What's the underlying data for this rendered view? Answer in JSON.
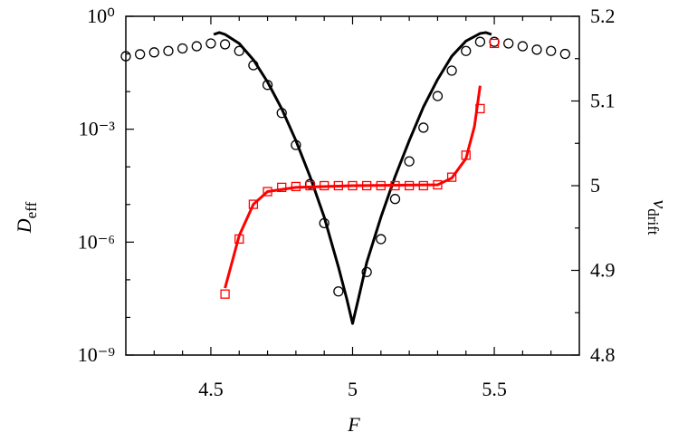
{
  "chart_data": {
    "type": "line",
    "xlabel": "F",
    "ylabel": "D",
    "ylabel_sub": "eff",
    "y2label": "v",
    "y2label_sub": "drift",
    "xlim": [
      4.2,
      5.8
    ],
    "xticks": [
      4.5,
      5,
      5.5
    ],
    "xminorticks": [
      4.3,
      4.4,
      4.6,
      4.7,
      4.8,
      4.9,
      5.1,
      5.2,
      5.3,
      5.4,
      5.6,
      5.7
    ],
    "ylim": [
      1e-09,
      1
    ],
    "yscale": "log",
    "yticks": [
      {
        "value": 1,
        "label": "10⁰"
      },
      {
        "value": 0.001,
        "label": "10⁻³"
      },
      {
        "value": 1e-06,
        "label": "10⁻⁶"
      },
      {
        "value": 1e-09,
        "label": "10⁻⁹"
      }
    ],
    "yminorticks": [
      0.1,
      0.01,
      0.0001,
      1e-05,
      1e-07,
      1e-08
    ],
    "y2lim": [
      4.8,
      5.2
    ],
    "y2ticks": [
      4.8,
      4.9,
      5,
      5.1,
      5.2
    ],
    "y2minorticks": [
      4.85,
      4.95,
      5.05,
      5.15
    ],
    "series": [
      {
        "color": "#000000",
        "marker": "circle",
        "axis": "y",
        "x": [
          4.2,
          4.25,
          4.3,
          4.35,
          4.4,
          4.45,
          4.5,
          4.55,
          4.6,
          4.65,
          4.7,
          4.75,
          4.8,
          4.85,
          4.9,
          4.95,
          5.05,
          5.1,
          5.15,
          5.2,
          5.25,
          5.3,
          5.35,
          5.4,
          5.45,
          5.5,
          5.55,
          5.6,
          5.65,
          5.7,
          5.75
        ],
        "values": [
          0.087,
          0.098,
          0.11,
          0.12,
          0.14,
          0.16,
          0.19,
          0.18,
          0.12,
          0.05,
          0.015,
          0.0027,
          0.00038,
          3.5e-05,
          3.2e-06,
          4.9e-08,
          1.6e-07,
          1.2e-06,
          1.4e-05,
          0.00014,
          0.0011,
          0.0076,
          0.036,
          0.12,
          0.21,
          0.21,
          0.19,
          0.16,
          0.13,
          0.12,
          0.1
        ]
      },
      {
        "color": "#000000",
        "marker": "none",
        "axis": "y",
        "x": [
          4.51,
          4.53,
          4.55,
          4.6,
          4.65,
          4.7,
          4.75,
          4.8,
          4.85,
          4.9,
          4.95,
          4.98,
          5.0,
          5.02,
          5.05,
          5.1,
          5.15,
          5.2,
          5.25,
          5.3,
          5.35,
          5.4,
          5.45,
          5.47,
          5.49
        ],
        "values": [
          0.33,
          0.37,
          0.33,
          0.19,
          0.07,
          0.018,
          0.0035,
          0.0005,
          5.5e-05,
          4.6e-06,
          2.2e-07,
          3e-08,
          6.9e-09,
          3e-08,
          2.9e-07,
          4.6e-06,
          5.5e-05,
          0.0005,
          0.0039,
          0.021,
          0.087,
          0.22,
          0.35,
          0.37,
          0.33
        ]
      },
      {
        "color": "#ff0000",
        "marker": "square",
        "axis": "y2",
        "x": [
          4.55,
          4.6,
          4.65,
          4.7,
          4.75,
          4.8,
          4.85,
          4.9,
          4.95,
          5.0,
          5.05,
          5.1,
          5.15,
          5.2,
          5.25,
          5.3,
          5.35,
          5.4,
          5.45,
          5.5
        ],
        "values": [
          4.872,
          4.937,
          4.978,
          4.993,
          4.998,
          4.999,
          5.0,
          5.0,
          5.0,
          5.0,
          5.0,
          5.0,
          5.0,
          5.0,
          5.0,
          5.001,
          5.01,
          5.036,
          5.091,
          5.168
        ]
      },
      {
        "color": "#ff0000",
        "marker": "none",
        "axis": "y2",
        "x": [
          4.55,
          4.6,
          4.65,
          4.7,
          4.8,
          5.0,
          5.3,
          5.35,
          5.4,
          5.43,
          5.45
        ],
        "values": [
          4.879,
          4.941,
          4.978,
          4.993,
          4.998,
          5.0,
          5.001,
          5.009,
          5.032,
          5.07,
          5.118
        ]
      }
    ]
  }
}
